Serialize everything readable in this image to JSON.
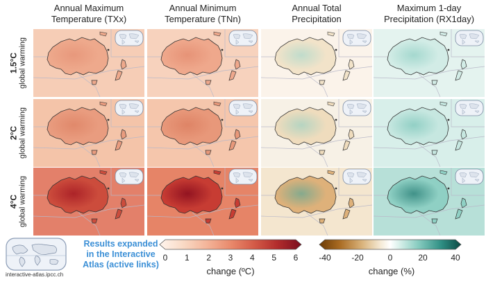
{
  "columns": [
    {
      "title_line1": "Annual Maximum",
      "title_line2": "Temperature (TXx)",
      "variable": "temperature"
    },
    {
      "title_line1": "Annual Minimum",
      "title_line2": "Temperature (TNn)",
      "variable": "temperature"
    },
    {
      "title_line1": "Annual Total",
      "title_line2": "Precipitation",
      "variable": "precipitation"
    },
    {
      "title_line1": "Maximum 1-day",
      "title_line2": "Precipitation (RX1day)",
      "variable": "precipitation"
    }
  ],
  "rows": [
    {
      "level": "1.5°C",
      "sub": "global warming"
    },
    {
      "level": "2°C",
      "sub": "global warming"
    },
    {
      "level": "4°C",
      "sub": "global warming"
    }
  ],
  "temperature_colorbar": {
    "ticks": [
      "0",
      "1",
      "2",
      "3",
      "4",
      "5",
      "6"
    ],
    "label": "change (ºC)",
    "colors": [
      "#fff5ee",
      "#f9d9c4",
      "#f4b59a",
      "#e98a6c",
      "#d35a47",
      "#b22c2c",
      "#7a0e1f"
    ]
  },
  "precip_colorbar": {
    "ticks": [
      "-40",
      "-20",
      "0",
      "20",
      "40"
    ],
    "label": "change (%)",
    "colors": [
      "#6b3b06",
      "#a86a21",
      "#d9b27a",
      "#f5e9d4",
      "#ffffff",
      "#d6efe9",
      "#86cbbf",
      "#2f8f84",
      "#0b4a44"
    ]
  },
  "atlas": {
    "link_line1": "Results expanded",
    "link_line2": "in the Interactive",
    "link_line3": "Atlas (active links)",
    "url": "interactive-atlas.ipcc.ch"
  },
  "colors": {
    "land_outline": "#333333",
    "region_lines": "#b8b8c8",
    "link_text": "#3b8fd6"
  }
}
